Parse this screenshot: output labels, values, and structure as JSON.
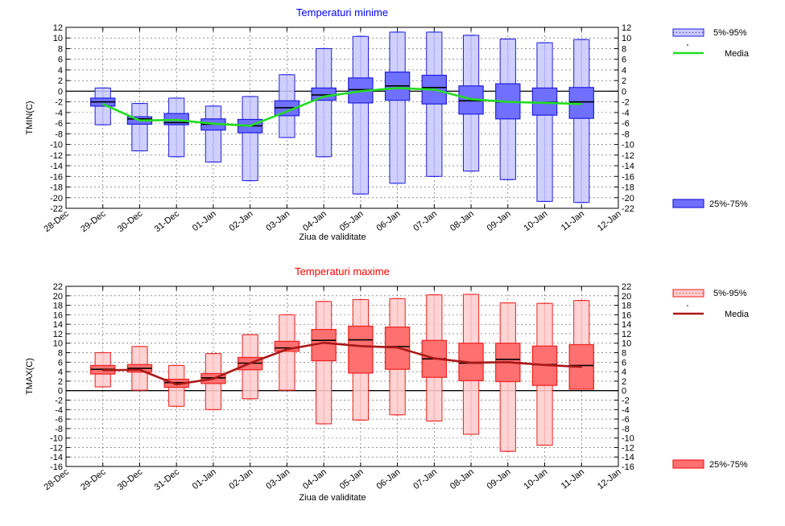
{
  "chart_data": [
    {
      "type": "boxplot",
      "title": "Temperaturi minime",
      "title_color": "#0000ff",
      "xlabel": "Ziua de validitate",
      "ylabel": "TMIN(C)",
      "ylim": [
        -22,
        12
      ],
      "ytick_step": 2,
      "grid": true,
      "x_ticks": [
        "28-Dec",
        "29-Dec",
        "30-Dec",
        "31-Dec",
        "01-Jan",
        "02-Jan",
        "03-Jan",
        "04-Jan",
        "05-Jan",
        "06-Jan",
        "07-Jan",
        "08-Jan",
        "09-Jan",
        "10-Jan",
        "11-Jan",
        "12-Jan"
      ],
      "fill_color": "#7070ff",
      "light_fill_color": "#c8c8ff",
      "stroke_color": "#2020dd",
      "mean_color": "#22dd22",
      "legend": {
        "outer": "5%-95%",
        "mean": "Media",
        "inner": "25%-75%"
      },
      "boxes": [
        {
          "label": "29-Dec",
          "p5": -6.3,
          "p25": -2.8,
          "median": -2.0,
          "p75": -1.3,
          "p95": 0.6
        },
        {
          "label": "30-Dec",
          "p5": -11.2,
          "p25": -6.2,
          "median": -5.2,
          "p75": -4.8,
          "p95": -2.3
        },
        {
          "label": "31-Dec",
          "p5": -12.3,
          "p25": -6.3,
          "median": -5.9,
          "p75": -4.2,
          "p95": -1.3
        },
        {
          "label": "01-Jan",
          "p5": -13.3,
          "p25": -7.3,
          "median": -6.2,
          "p75": -5.2,
          "p95": -2.8
        },
        {
          "label": "02-Jan",
          "p5": -16.8,
          "p25": -7.8,
          "median": -6.5,
          "p75": -5.3,
          "p95": -1.0
        },
        {
          "label": "03-Jan",
          "p5": -8.7,
          "p25": -4.6,
          "median": -3.1,
          "p75": -1.8,
          "p95": 3.1
        },
        {
          "label": "04-Jan",
          "p5": -12.3,
          "p25": -1.7,
          "median": -0.7,
          "p75": 0.6,
          "p95": 8.0
        },
        {
          "label": "05-Jan",
          "p5": -19.3,
          "p25": -2.2,
          "median": 0.3,
          "p75": 2.5,
          "p95": 10.3
        },
        {
          "label": "06-Jan",
          "p5": -17.3,
          "p25": -1.7,
          "median": 1.0,
          "p75": 3.6,
          "p95": 11.1
        },
        {
          "label": "07-Jan",
          "p5": -16.0,
          "p25": -2.4,
          "median": 0.7,
          "p75": 3.0,
          "p95": 11.1
        },
        {
          "label": "08-Jan",
          "p5": -15.0,
          "p25": -4.3,
          "median": -1.8,
          "p75": 1.0,
          "p95": 10.5
        },
        {
          "label": "09-Jan",
          "p5": -16.6,
          "p25": -5.2,
          "median": -2.0,
          "p75": 1.4,
          "p95": 9.8
        },
        {
          "label": "10-Jan",
          "p5": -20.7,
          "p25": -4.5,
          "median": -2.1,
          "p75": 0.6,
          "p95": 9.1
        },
        {
          "label": "11-Jan",
          "p5": -20.9,
          "p25": -5.1,
          "median": -2.0,
          "p75": 0.7,
          "p95": 9.7
        }
      ],
      "mean": [
        -2.4,
        -5.5,
        -5.4,
        -6.1,
        -6.5,
        -3.8,
        -1.0,
        0.0,
        0.6,
        0.3,
        -1.5,
        -2.0,
        -2.2,
        -2.4
      ]
    },
    {
      "type": "boxplot",
      "title": "Temperaturi maxime",
      "title_color": "#ff0000",
      "xlabel": "Ziua de validitate",
      "ylabel": "TMAX(C)",
      "ylim": [
        -16,
        22
      ],
      "ytick_step": 2,
      "grid": true,
      "x_ticks": [
        "28-Dec",
        "29-Dec",
        "30-Dec",
        "31-Dec",
        "01-Jan",
        "02-Jan",
        "03-Jan",
        "04-Jan",
        "05-Jan",
        "06-Jan",
        "07-Jan",
        "08-Jan",
        "09-Jan",
        "10-Jan",
        "11-Jan",
        "12-Jan"
      ],
      "fill_color": "#ff7070",
      "light_fill_color": "#ffcccc",
      "stroke_color": "#ee2020",
      "mean_color": "#aa1818",
      "legend": {
        "outer": "5%-95%",
        "mean": "Media",
        "inner": "25%-75%"
      },
      "boxes": [
        {
          "label": "29-Dec",
          "p5": 0.8,
          "p25": 3.5,
          "median": 4.5,
          "p75": 5.3,
          "p95": 8.0
        },
        {
          "label": "30-Dec",
          "p5": 0.1,
          "p25": 3.9,
          "median": 4.7,
          "p75": 5.5,
          "p95": 9.3
        },
        {
          "label": "31-Dec",
          "p5": -3.3,
          "p25": 0.7,
          "median": 1.7,
          "p75": 2.4,
          "p95": 5.3
        },
        {
          "label": "01-Jan",
          "p5": -4.0,
          "p25": 1.5,
          "median": 2.7,
          "p75": 3.6,
          "p95": 7.8
        },
        {
          "label": "02-Jan",
          "p5": -1.7,
          "p25": 4.4,
          "median": 5.8,
          "p75": 7.0,
          "p95": 11.8
        },
        {
          "label": "03-Jan",
          "p5": 0.1,
          "p25": 8.3,
          "median": 9.0,
          "p75": 10.4,
          "p95": 16.0
        },
        {
          "label": "04-Jan",
          "p5": -7.0,
          "p25": 6.3,
          "median": 10.6,
          "p75": 12.9,
          "p95": 18.8
        },
        {
          "label": "05-Jan",
          "p5": -6.2,
          "p25": 3.7,
          "median": 10.7,
          "p75": 13.6,
          "p95": 19.2
        },
        {
          "label": "06-Jan",
          "p5": -5.1,
          "p25": 4.5,
          "median": 9.3,
          "p75": 13.4,
          "p95": 19.4
        },
        {
          "label": "07-Jan",
          "p5": -6.4,
          "p25": 2.8,
          "median": 6.7,
          "p75": 10.6,
          "p95": 20.2
        },
        {
          "label": "08-Jan",
          "p5": -9.2,
          "p25": 2.1,
          "median": 5.8,
          "p75": 10.0,
          "p95": 20.3
        },
        {
          "label": "09-Jan",
          "p5": -12.8,
          "p25": 1.9,
          "median": 6.6,
          "p75": 10.0,
          "p95": 18.5
        },
        {
          "label": "10-Jan",
          "p5": -11.5,
          "p25": 1.1,
          "median": 5.5,
          "p75": 9.4,
          "p95": 18.4
        },
        {
          "label": "11-Jan",
          "p5": 0.3,
          "p25": 0.3,
          "median": 5.3,
          "p75": 9.7,
          "p95": 19.0
        }
      ],
      "mean": [
        4.3,
        4.4,
        1.3,
        2.5,
        5.8,
        8.7,
        10.1,
        9.4,
        9.1,
        6.8,
        5.9,
        6.0,
        5.4,
        5.0
      ]
    }
  ]
}
